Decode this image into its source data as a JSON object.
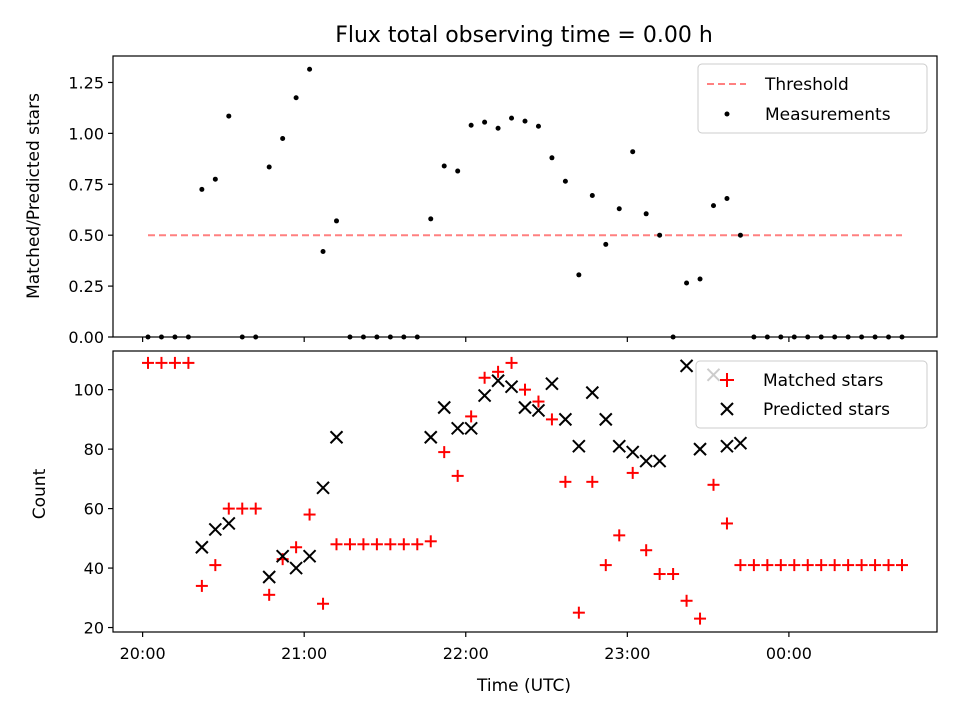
{
  "figure": {
    "title": "Flux total observing time = 0.00 h"
  },
  "chart_data": [
    {
      "type": "scatter",
      "title": "Flux total observing time = 0.00 h",
      "xlabel": "",
      "ylabel": "Matched/Predicted stars",
      "xlim": [
        "19:49",
        "00:55"
      ],
      "ylim": [
        0,
        1.38
      ],
      "yticks": [
        0.0,
        0.25,
        0.5,
        0.75,
        1.0,
        1.25
      ],
      "ytick_labels": [
        "0.00",
        "0.25",
        "0.50",
        "0.75",
        "1.00",
        "1.25"
      ],
      "xticks": [
        "20:00",
        "21:00",
        "22:00",
        "23:00",
        "00:00"
      ],
      "grid": false,
      "legend_position": "top-right",
      "series": [
        {
          "name": "Threshold",
          "kind": "line",
          "style": "dashed",
          "color": "#ff8080",
          "x": [
            "20:02",
            "00:42"
          ],
          "y": [
            0.5,
            0.5
          ]
        },
        {
          "name": "Measurements",
          "kind": "scatter",
          "marker": "dot",
          "color": "#000000",
          "x": [
            "20:02",
            "20:07",
            "20:12",
            "20:17",
            "20:22",
            "20:27",
            "20:32",
            "20:37",
            "20:42",
            "20:47",
            "20:52",
            "20:57",
            "21:02",
            "21:07",
            "21:12",
            "21:17",
            "21:22",
            "21:27",
            "21:32",
            "21:37",
            "21:42",
            "21:47",
            "21:52",
            "21:57",
            "22:02",
            "22:07",
            "22:12",
            "22:17",
            "22:22",
            "22:27",
            "22:32",
            "22:37",
            "22:42",
            "22:47",
            "22:52",
            "22:57",
            "23:02",
            "23:07",
            "23:12",
            "23:17",
            "23:22",
            "23:27",
            "23:32",
            "23:37",
            "23:42",
            "23:47",
            "23:52",
            "23:57",
            "00:02",
            "00:07",
            "00:12",
            "00:17",
            "00:22",
            "00:27",
            "00:32",
            "00:37",
            "00:42"
          ],
          "y": [
            0,
            0,
            0,
            0,
            0.725,
            0.775,
            1.085,
            0,
            0,
            0.835,
            0.975,
            1.175,
            1.315,
            0.42,
            0.57,
            0,
            0,
            0,
            0,
            0,
            0,
            0.58,
            0.84,
            0.815,
            1.04,
            1.055,
            1.025,
            1.075,
            1.06,
            1.035,
            0.88,
            0.765,
            0.305,
            0.695,
            0.455,
            0.63,
            0.91,
            0.605,
            0.5,
            0,
            0.265,
            0.285,
            0.645,
            0.68,
            0.5,
            0,
            0,
            0,
            0,
            0,
            0,
            0,
            0,
            0,
            0,
            0,
            0
          ]
        }
      ]
    },
    {
      "type": "scatter",
      "title": "",
      "xlabel": "Time (UTC)",
      "ylabel": "Count",
      "xlim": [
        "19:49",
        "00:55"
      ],
      "ylim": [
        18.5,
        113
      ],
      "yticks": [
        20,
        40,
        60,
        80,
        100
      ],
      "ytick_labels": [
        "20",
        "40",
        "60",
        "80",
        "100"
      ],
      "xticks": [
        "20:00",
        "21:00",
        "22:00",
        "23:00",
        "00:00"
      ],
      "xtick_labels": [
        "20:00",
        "21:00",
        "22:00",
        "23:00",
        "00:00"
      ],
      "grid": false,
      "legend_position": "top-right",
      "series": [
        {
          "name": "Matched stars",
          "kind": "scatter",
          "marker": "plus",
          "color": "#ff0000",
          "x": [
            "20:02",
            "20:07",
            "20:12",
            "20:17",
            "20:22",
            "20:27",
            "20:32",
            "20:37",
            "20:42",
            "20:47",
            "20:52",
            "20:57",
            "21:02",
            "21:07",
            "21:12",
            "21:17",
            "21:22",
            "21:27",
            "21:32",
            "21:37",
            "21:42",
            "21:47",
            "21:52",
            "21:57",
            "22:02",
            "22:07",
            "22:12",
            "22:17",
            "22:22",
            "22:27",
            "22:32",
            "22:37",
            "22:42",
            "22:47",
            "22:52",
            "22:57",
            "23:02",
            "23:07",
            "23:12",
            "23:17",
            "23:22",
            "23:27",
            "23:32",
            "23:37",
            "23:42",
            "23:47",
            "23:52",
            "23:57",
            "00:02",
            "00:07",
            "00:12",
            "00:17",
            "00:22",
            "00:27",
            "00:32",
            "00:37",
            "00:42"
          ],
          "y": [
            109,
            109,
            109,
            109,
            34,
            41,
            60,
            60,
            60,
            31,
            43,
            47,
            58,
            28,
            48,
            48,
            48,
            48,
            48,
            48,
            48,
            49,
            79,
            71,
            91,
            104,
            106,
            109,
            100,
            96,
            90,
            69,
            25,
            69,
            41,
            51,
            72,
            46,
            38,
            38,
            29,
            23,
            68,
            55,
            41,
            41,
            41,
            41,
            41,
            41,
            41,
            41,
            41,
            41,
            41,
            41,
            41
          ]
        },
        {
          "name": "Predicted stars",
          "kind": "scatter",
          "marker": "x",
          "color": "#000000",
          "x": [
            "20:22",
            "20:27",
            "20:32",
            "20:47",
            "20:52",
            "20:57",
            "21:02",
            "21:07",
            "21:12",
            "21:47",
            "21:52",
            "21:57",
            "22:02",
            "22:07",
            "22:12",
            "22:17",
            "22:22",
            "22:27",
            "22:32",
            "22:37",
            "22:42",
            "22:47",
            "22:52",
            "22:57",
            "23:02",
            "23:07",
            "23:12",
            "23:22",
            "23:27",
            "23:32",
            "23:37",
            "23:42"
          ],
          "y": [
            47,
            53,
            55,
            37,
            44,
            40,
            44,
            67,
            84,
            84,
            94,
            87,
            87,
            98,
            103,
            101,
            94,
            93,
            102,
            90,
            81,
            99,
            90,
            81,
            79,
            76,
            76,
            108,
            80,
            105,
            81,
            82
          ]
        }
      ]
    }
  ]
}
